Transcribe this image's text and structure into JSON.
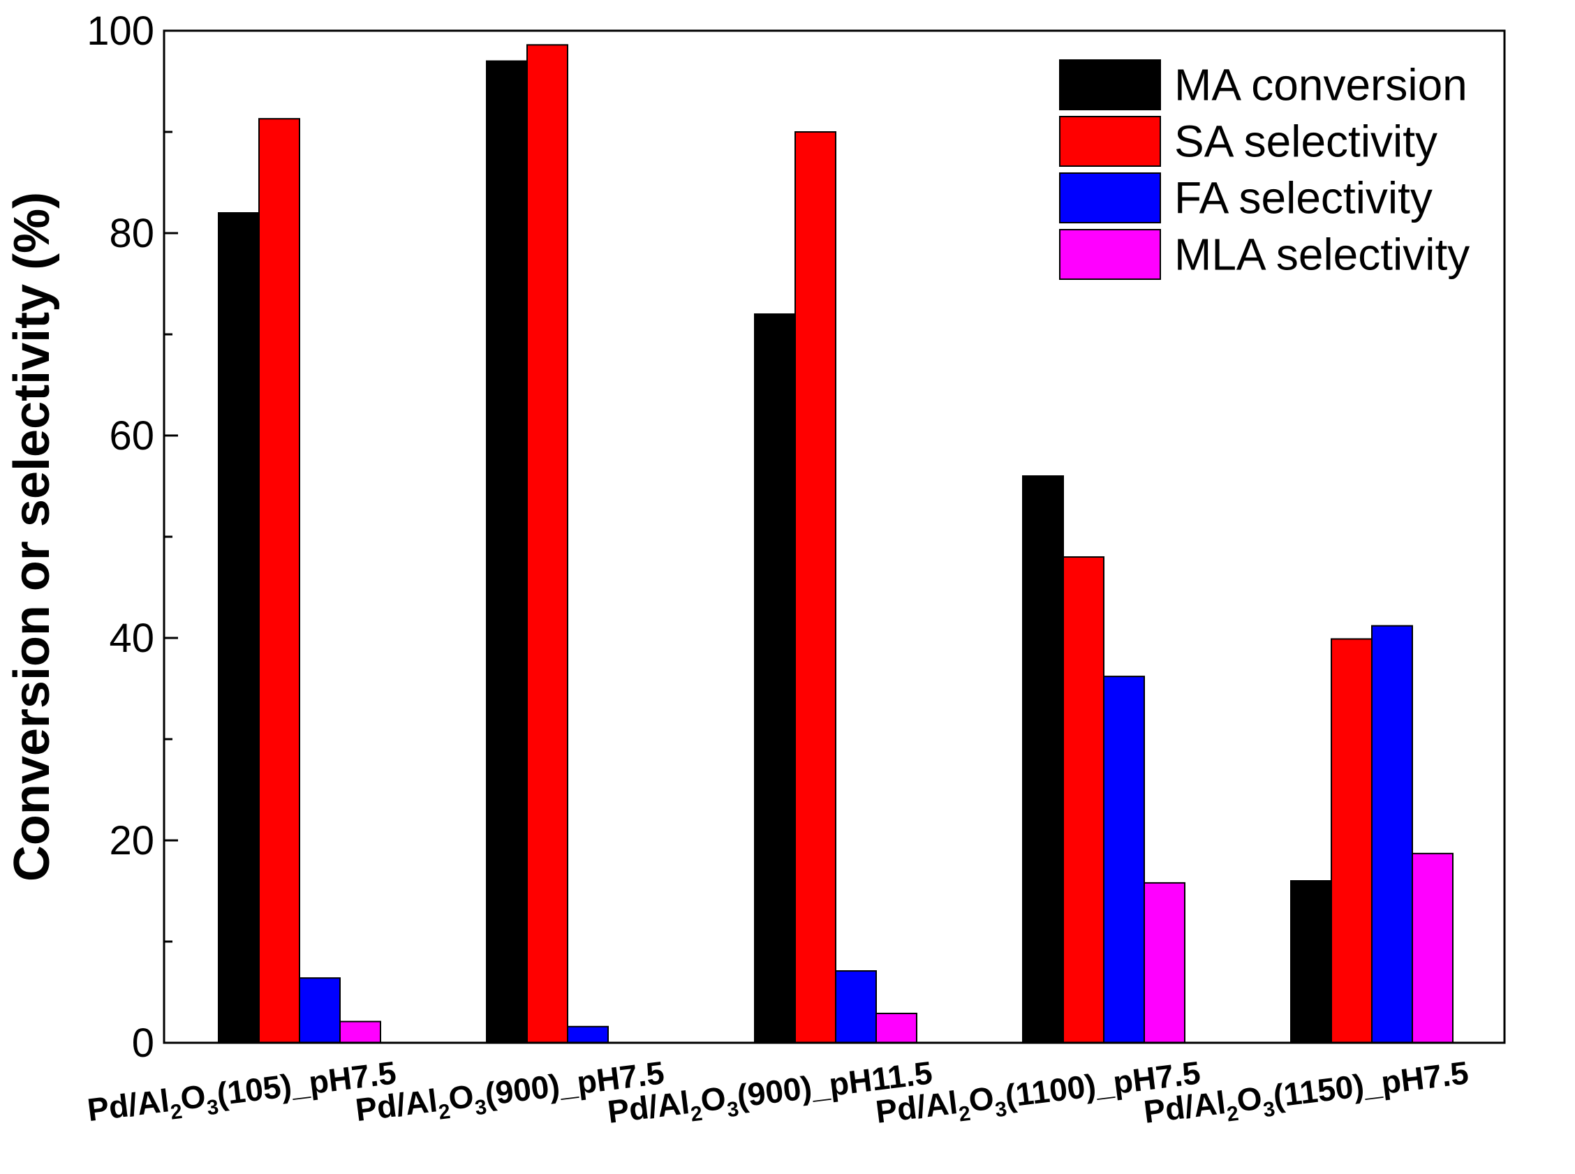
{
  "chart_data": {
    "type": "bar",
    "title": "",
    "xlabel": "",
    "ylabel": "Conversion or selectivity (%)",
    "ylim": [
      0,
      100
    ],
    "yticks": [
      0,
      20,
      40,
      60,
      80,
      100
    ],
    "grid": false,
    "legend_position": "top-right",
    "categories": [
      {
        "pre": "Pd/Al",
        "sub1": "2",
        "mid": "O",
        "sub2": "3",
        "post": "(105)_pH7.5"
      },
      {
        "pre": "Pd/Al",
        "sub1": "2",
        "mid": "O",
        "sub2": "3",
        "post": "(900)_pH7.5"
      },
      {
        "pre": "Pd/Al",
        "sub1": "2",
        "mid": "O",
        "sub2": "3",
        "post": "(900)_pH11.5"
      },
      {
        "pre": "Pd/Al",
        "sub1": "2",
        "mid": "O",
        "sub2": "3",
        "post": "(1100)_pH7.5"
      },
      {
        "pre": "Pd/Al",
        "sub1": "2",
        "mid": "O",
        "sub2": "3",
        "post": "(1150)_pH7.5"
      }
    ],
    "series": [
      {
        "name": "MA conversion",
        "color": "#000000",
        "values": [
          82,
          97,
          72,
          56,
          16
        ]
      },
      {
        "name": "SA selectivity",
        "color": "#ff0000",
        "values": [
          91.3,
          98.6,
          90,
          48,
          39.9
        ]
      },
      {
        "name": "FA selectivity",
        "color": "#0000ff",
        "values": [
          6.4,
          1.6,
          7.1,
          36.2,
          41.2
        ]
      },
      {
        "name": "MLA selectivity",
        "color": "#ff00ff",
        "values": [
          2.1,
          0,
          2.9,
          15.8,
          18.7
        ]
      }
    ]
  }
}
